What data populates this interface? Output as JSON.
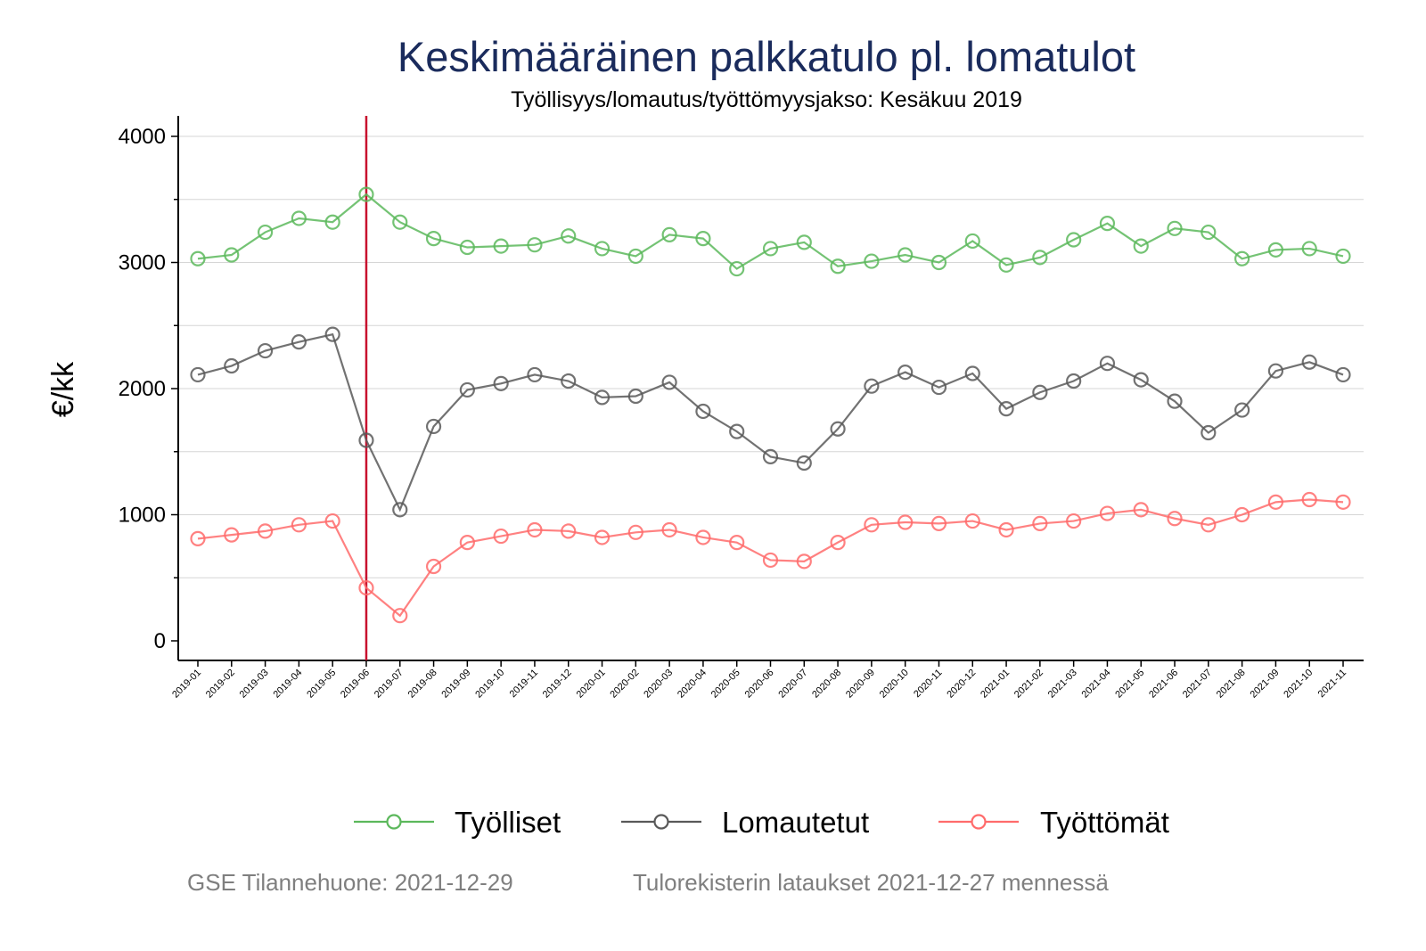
{
  "chart_data": {
    "type": "line",
    "title": "Keskimääräinen palkkatulo pl. lomatulot",
    "subtitle": "Työllisyys/lomautus/työttömyysjakso: Kesäkuu 2019",
    "ylabel": "€/kk",
    "xlabel": "",
    "ylim": [
      -150,
      4150
    ],
    "yticks": [
      0,
      1000,
      2000,
      3000,
      4000
    ],
    "grid": true,
    "legend": "bottom",
    "vertical_marker": "2019-06",
    "vertical_marker_color": "#c8102e",
    "categories": [
      "2019-01",
      "2019-02",
      "2019-03",
      "2019-04",
      "2019-05",
      "2019-06",
      "2019-07",
      "2019-08",
      "2019-09",
      "2019-10",
      "2019-11",
      "2019-12",
      "2020-01",
      "2020-02",
      "2020-03",
      "2020-04",
      "2020-05",
      "2020-06",
      "2020-07",
      "2020-08",
      "2020-09",
      "2020-10",
      "2020-11",
      "2020-12",
      "2021-01",
      "2021-02",
      "2021-03",
      "2021-04",
      "2021-05",
      "2021-06",
      "2021-07",
      "2021-08",
      "2021-09",
      "2021-10",
      "2021-11"
    ],
    "series": [
      {
        "name": "Työlliset",
        "color": "#5cb85c",
        "values": [
          3030,
          3060,
          3240,
          3350,
          3320,
          3540,
          3320,
          3190,
          3120,
          3130,
          3140,
          3210,
          3110,
          3050,
          3220,
          3190,
          2950,
          3110,
          3160,
          2970,
          3010,
          3060,
          3000,
          3170,
          2980,
          3040,
          3180,
          3310,
          3130,
          3270,
          3240,
          3030,
          3100,
          3110,
          3050
        ]
      },
      {
        "name": "Lomautetut",
        "color": "#595959",
        "values": [
          2110,
          2180,
          2300,
          2370,
          2430,
          1590,
          1040,
          1700,
          1990,
          2040,
          2110,
          2060,
          1930,
          1940,
          2050,
          1820,
          1660,
          1460,
          1410,
          1680,
          2020,
          2130,
          2010,
          2120,
          1840,
          1970,
          2060,
          2200,
          2070,
          1900,
          1650,
          1830,
          2140,
          2210,
          2110
        ]
      },
      {
        "name": "Työttömät",
        "color": "#ff6b6b",
        "values": [
          810,
          840,
          870,
          920,
          950,
          420,
          200,
          590,
          780,
          830,
          880,
          870,
          820,
          860,
          880,
          820,
          780,
          640,
          630,
          780,
          920,
          940,
          930,
          950,
          880,
          930,
          950,
          1010,
          1040,
          970,
          920,
          1000,
          1100,
          1120,
          1100
        ]
      }
    ]
  },
  "footer": {
    "left": "GSE Tilannehuone: 2021-12-29",
    "right": "Tulorekisterin lataukset 2021-12-27 mennessä"
  }
}
